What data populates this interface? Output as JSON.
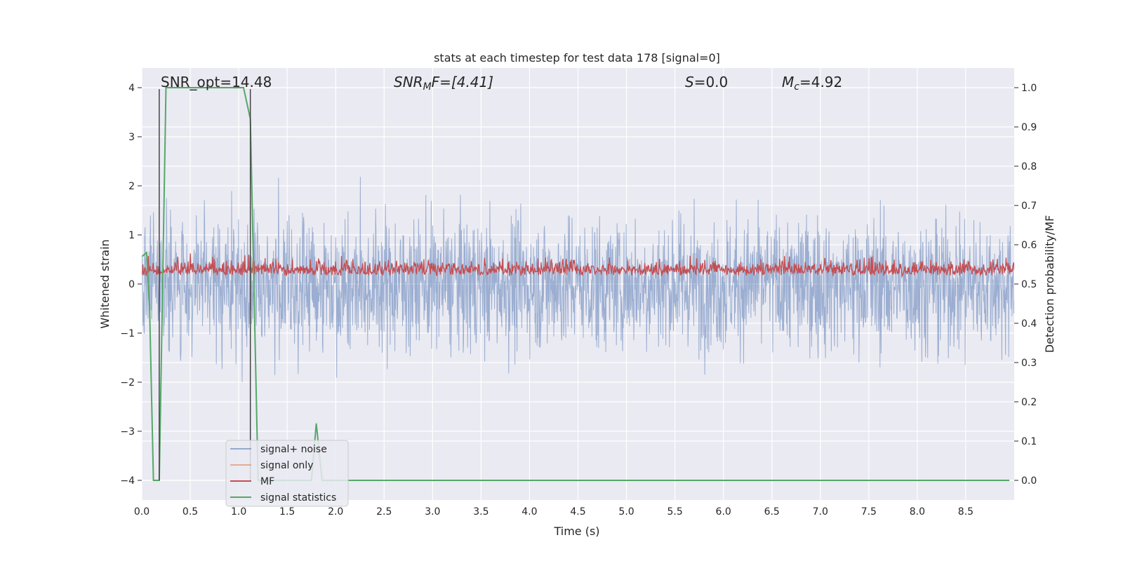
{
  "chart_data": {
    "type": "line",
    "title": "stats at each timestep for test data 178 [signal=0]",
    "xlabel": "Time (s)",
    "ylabel_left": "Whitened strain",
    "ylabel_right": "Detection probability/MF",
    "xlim": [
      0.0,
      9.0
    ],
    "ylim_left": [
      -4.4,
      4.4
    ],
    "ylim_right": [
      -0.05,
      1.05
    ],
    "x_ticks": [
      "0.0",
      "0.5",
      "1.0",
      "1.5",
      "2.0",
      "2.5",
      "3.0",
      "3.5",
      "4.0",
      "4.5",
      "5.0",
      "5.5",
      "6.0",
      "6.5",
      "7.0",
      "7.5",
      "8.0",
      "8.5"
    ],
    "y_ticks_left": [
      "−4",
      "−3",
      "−2",
      "−1",
      "0",
      "1",
      "2",
      "3",
      "4"
    ],
    "y_ticks_right": [
      "0.0",
      "0.1",
      "0.2",
      "0.3",
      "0.4",
      "0.5",
      "0.6",
      "0.7",
      "0.8",
      "0.9",
      "1.0"
    ],
    "grid": true,
    "legend_position": "bottom-left",
    "annotations": {
      "snr_opt": "SNR_opt=14.48",
      "snr_mf_name": "SNR",
      "snr_mf_sub": "M",
      "snr_mf_rest": "F=[4.41]",
      "s_name": "S",
      "s_rest": "=0.0",
      "mc_name": "M",
      "mc_sub": "c",
      "mc_rest": "=4.92"
    },
    "vertical_lines_x": [
      0.18,
      1.12
    ],
    "series": [
      {
        "name": "signal+ noise",
        "color": "#4c72b0",
        "axis": "left",
        "description_values": "noise, amplitude envelope ~±2.5 with peaks near 4"
      },
      {
        "name": "signal only",
        "color": "#dd8452",
        "axis": "left",
        "values": []
      },
      {
        "name": "MF",
        "color": "#c44e52",
        "axis": "right",
        "range": [
          0.5,
          0.61
        ]
      },
      {
        "name": "signal statistics",
        "color": "#55a868",
        "axis": "right",
        "x": [
          0.0,
          0.05,
          0.08,
          0.12,
          0.18,
          0.25,
          1.05,
          1.12,
          1.2,
          1.75,
          1.8,
          1.86,
          8.95
        ],
        "values": [
          0.57,
          0.58,
          0.45,
          0.0,
          0.0,
          1.0,
          1.0,
          0.92,
          0.0,
          0.0,
          0.145,
          0.0,
          0.0
        ]
      }
    ]
  }
}
